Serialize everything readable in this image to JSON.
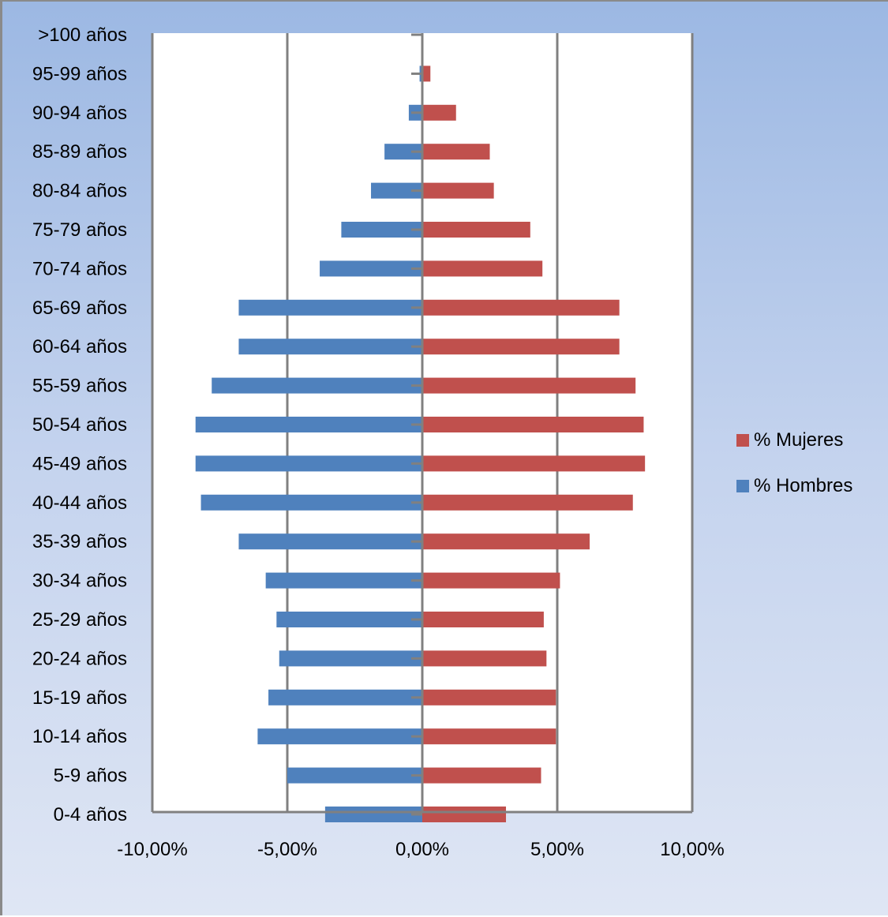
{
  "colors": {
    "mujeres": "#c0504d",
    "hombres": "#4f81bd",
    "grid": "#808080"
  },
  "legend": {
    "mujeres_label": "% Mujeres",
    "hombres_label": "% Hombres"
  },
  "chart_data": {
    "type": "bar",
    "orientation": "horizontal",
    "categories": [
      "0-4 años",
      "5-9 años",
      "10-14 años",
      "15-19 años",
      "20-24 años",
      "25-29 años",
      "30-34 años",
      "35-39 años",
      "40-44 años",
      "45-49 años",
      "50-54 años",
      "55-59 años",
      "60-64 años",
      "65-69 años",
      "70-74 años",
      "75-79 años",
      "80-84 años",
      "85-89 años",
      "90-94 años",
      "95-99 años",
      ">100 años"
    ],
    "series": [
      {
        "name": "% Mujeres",
        "values": [
          3.1,
          4.4,
          4.95,
          4.95,
          4.6,
          4.5,
          5.1,
          6.2,
          7.8,
          8.25,
          8.2,
          7.9,
          7.3,
          7.3,
          4.45,
          4.0,
          2.65,
          2.5,
          1.25,
          0.3,
          0.0
        ]
      },
      {
        "name": "% Hombres",
        "values": [
          -3.6,
          -5.0,
          -6.1,
          -5.7,
          -5.3,
          -5.4,
          -5.8,
          -6.8,
          -8.2,
          -8.4,
          -8.4,
          -7.8,
          -6.8,
          -6.8,
          -3.8,
          -3.0,
          -1.9,
          -1.4,
          -0.5,
          -0.1,
          0.0
        ]
      }
    ],
    "xlim": [
      -10,
      10
    ],
    "xticks": [
      -10,
      -5,
      0,
      5,
      10
    ],
    "xtick_labels": [
      "-10,00%",
      "-5,00%",
      "0,00%",
      "5,00%",
      "10,00%"
    ],
    "grid": "vertical",
    "legend_position": "right"
  }
}
